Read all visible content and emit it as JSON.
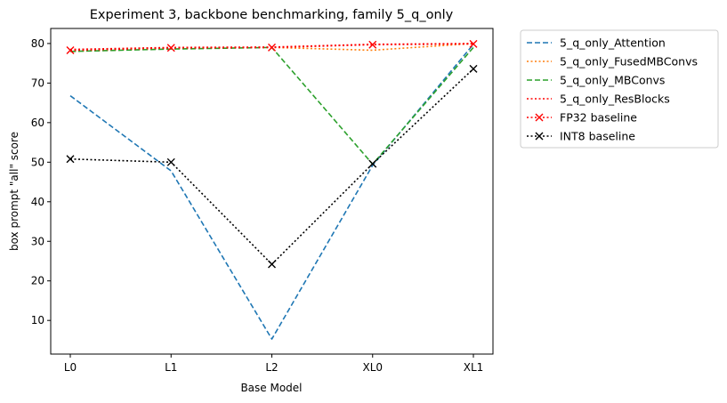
{
  "chart_data": {
    "type": "line",
    "title": "Experiment 3, backbone benchmarking, family 5_q_only",
    "xlabel": "Base Model",
    "ylabel": "box prompt \"all\" score",
    "categories": [
      "L0",
      "L1",
      "L2",
      "XL0",
      "XL1"
    ],
    "ylim": [
      1.5,
      83.8
    ],
    "yticks": [
      10,
      20,
      30,
      40,
      50,
      60,
      70,
      80
    ],
    "grid": false,
    "legend_position": "outside-right",
    "series": [
      {
        "name": "5_q_only_Attention",
        "values": [
          66.8,
          47.8,
          5.3,
          49.2,
          79.8
        ],
        "color": "#1f77b4",
        "dash": "dashed",
        "marker": "none"
      },
      {
        "name": "5_q_only_FusedMBConvs",
        "values": [
          78.0,
          78.7,
          79.0,
          78.3,
          80.0
        ],
        "color": "#ff7f0e",
        "dash": "dotted",
        "marker": "none"
      },
      {
        "name": "5_q_only_MBConvs",
        "values": [
          78.0,
          78.6,
          79.0,
          49.5,
          79.0
        ],
        "color": "#2ca02c",
        "dash": "dashed",
        "marker": "none"
      },
      {
        "name": "5_q_only_ResBlocks",
        "values": [
          78.5,
          79.0,
          79.1,
          79.8,
          80.0
        ],
        "color": "#ff0000",
        "dash": "dotted",
        "marker": "none"
      },
      {
        "name": "FP32 baseline",
        "values": [
          78.3,
          78.9,
          79.0,
          79.7,
          79.9
        ],
        "color": "#ff0000",
        "dash": "dotted",
        "marker": "x"
      },
      {
        "name": "INT8 baseline",
        "values": [
          50.8,
          50.0,
          24.2,
          49.6,
          73.6
        ],
        "color": "#000000",
        "dash": "dotted",
        "marker": "x"
      }
    ]
  }
}
